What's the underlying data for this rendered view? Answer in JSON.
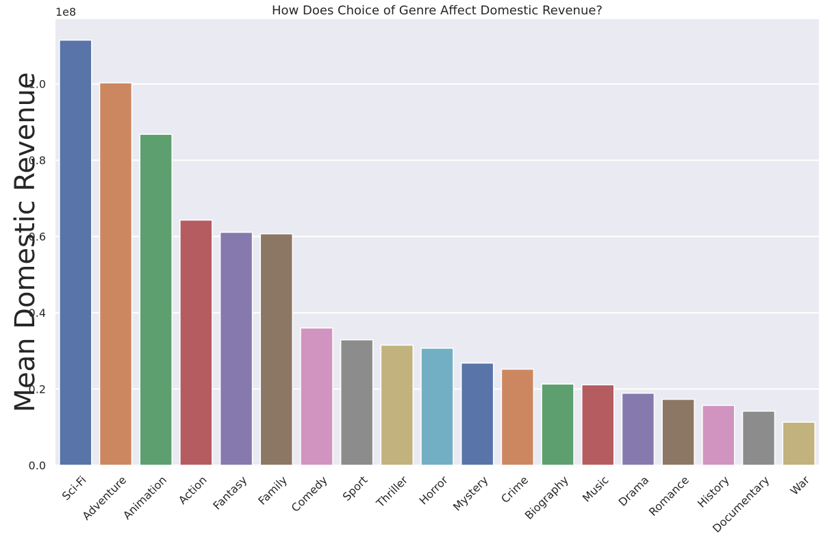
{
  "chart_data": {
    "type": "bar",
    "title": "How Does Choice of Genre Affect Domestic Revenue?",
    "xlabel": "",
    "ylabel": "Mean Domestic Revenue",
    "offset_label": "1e8",
    "ylim": [
      0,
      117000000
    ],
    "yticks": [
      0,
      20000000,
      40000000,
      60000000,
      80000000,
      100000000
    ],
    "ytick_labels": [
      "0.0",
      "0.2",
      "0.4",
      "0.6",
      "0.8",
      "1.0"
    ],
    "grid": true,
    "legend": "none",
    "categories": [
      "Sci-Fi",
      "Adventure",
      "Animation",
      "Action",
      "Fantasy",
      "Family",
      "Comedy",
      "Sport",
      "Thriller",
      "Horror",
      "Mystery",
      "Crime",
      "Biography",
      "Music",
      "Drama",
      "Romance",
      "History",
      "Documentary",
      "War"
    ],
    "values": [
      111500000,
      100300000,
      86800000,
      64300000,
      61100000,
      60700000,
      36000000,
      32900000,
      31500000,
      30700000,
      26800000,
      25200000,
      21300000,
      21100000,
      18900000,
      17300000,
      15700000,
      14200000,
      11300000
    ],
    "colors": [
      "#5874a8",
      "#cd8760",
      "#5d9f6f",
      "#b45c60",
      "#8679ae",
      "#8c7764",
      "#d194c0",
      "#8c8c8c",
      "#c2b27d",
      "#72afc4",
      "#5874a8",
      "#cd8760",
      "#5d9f6f",
      "#b45c60",
      "#8679ae",
      "#8c7764",
      "#d194c0",
      "#8c8c8c",
      "#c2b27d"
    ],
    "background": "#eaeaf2",
    "grid_color": "#ffffff"
  }
}
